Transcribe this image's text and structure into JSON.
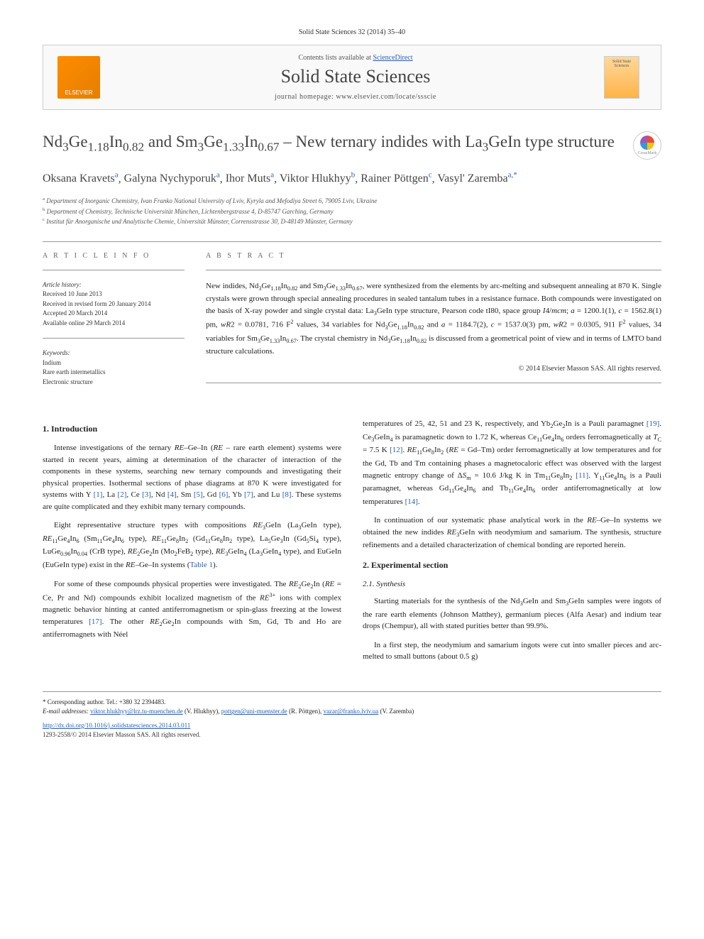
{
  "header": {
    "citation": "Solid State Sciences 32 (2014) 35–40"
  },
  "banner": {
    "contents_prefix": "Contents lists available at ",
    "contents_link": "ScienceDirect",
    "journal": "Solid State Sciences",
    "homepage_prefix": "journal homepage: ",
    "homepage": "www.elsevier.com/locate/ssscie",
    "publisher_name": "ELSEVIER",
    "cover_text": "Solid State Sciences"
  },
  "title": {
    "html": "Nd<sub>3</sub>Ge<sub>1.18</sub>In<sub>0.82</sub> and Sm<sub>3</sub>Ge<sub>1.33</sub>In<sub>0.67</sub> – New ternary indides with La<sub>3</sub>GeIn type structure"
  },
  "crossmark": "CrossMark",
  "authors": {
    "list": [
      {
        "name": "Oksana Kravets",
        "sup": "a"
      },
      {
        "name": "Galyna Nychyporuk",
        "sup": "a"
      },
      {
        "name": "Ihor Muts",
        "sup": "a"
      },
      {
        "name": "Viktor Hlukhyy",
        "sup": "b"
      },
      {
        "name": "Rainer Pöttgen",
        "sup": "c"
      },
      {
        "name": "Vasyl' Zaremba",
        "sup": "a,*"
      }
    ]
  },
  "affiliations": [
    {
      "sup": "a",
      "text": "Department of Inorganic Chemistry, Ivan Franko National University of Lviv, Kyryla and Mefodiya Street 6, 79005 Lviv, Ukraine"
    },
    {
      "sup": "b",
      "text": "Department of Chemistry, Technische Universität München, Lichtenbergstrasse 4, D-85747 Garching, Germany"
    },
    {
      "sup": "c",
      "text": "Institut für Anorganische und Analytische Chemie, Universität Münster, Corrensstrasse 30, D-48149 Münster, Germany"
    }
  ],
  "article_info": {
    "heading": "A R T I C L E   I N F O",
    "history_label": "Article history:",
    "history": [
      "Received 10 June 2013",
      "Received in revised form 20 January 2014",
      "Accepted 20 March 2014",
      "Available online 29 March 2014"
    ],
    "keywords_label": "Keywords:",
    "keywords": [
      "Indium",
      "Rare earth intermetallics",
      "Electronic structure"
    ]
  },
  "abstract": {
    "heading": "A B S T R A C T",
    "text_html": "New indides, Nd<sub>3</sub>Ge<sub>1.18</sub>In<sub>0.82</sub> and Sm<sub>3</sub>Ge<sub>1.33</sub>In<sub>0.67</sub>, were synthesized from the elements by arc-melting and subsequent annealing at 870 K. Single crystals were grown through special annealing procedures in sealed tantalum tubes in a resistance furnace. Both compounds were investigated on the basis of X-ray powder and single crystal data: La<sub>3</sub>GeIn type structure, Pearson code tI80, space group <i>I</i>4/<i>mcm</i>; <i>a</i> = 1200.1(1), <i>c</i> = 1562.8(1) pm, <i>wR</i>2 = 0.0781, 716 F<sup>2</sup> values, 34 variables for Nd<sub>3</sub>Ge<sub>1.18</sub>In<sub>0.82</sub> and <i>a</i> = 1184.7(2), <i>c</i> = 1537.0(3) pm, <i>wR</i>2 = 0.0305, 911 F<sup>2</sup> values, 34 variables for Sm<sub>3</sub>Ge<sub>1.33</sub>In<sub>0.67</sub>. The crystal chemistry in Nd<sub>3</sub>Ge<sub>1.18</sub>In<sub>0.82</sub> is discussed from a geometrical point of view and in terms of LMTO band structure calculations.",
    "copyright": "© 2014 Elsevier Masson SAS. All rights reserved."
  },
  "body": {
    "left": {
      "section1_heading": "1. Introduction",
      "p1_html": "Intense investigations of the ternary <i>RE</i>–Ge–In (<i>RE</i> – rare earth element) systems were started in recent years, aiming at determination of the character of interaction of the components in these systems, searching new ternary compounds and investigating their physical properties. Isothermal sections of phase diagrams at 870 K were investigated for systems with Y <span class='ref'>[1]</span>, La <span class='ref'>[2]</span>, Ce <span class='ref'>[3]</span>, Nd <span class='ref'>[4]</span>, Sm <span class='ref'>[5]</span>, Gd <span class='ref'>[6]</span>, Yb <span class='ref'>[7]</span>, and Lu <span class='ref'>[8]</span>. These systems are quite complicated and they exhibit many ternary compounds.",
      "p2_html": "Eight representative structure types with compositions <i>RE</i><sub>3</sub>GeIn (La<sub>3</sub>GeIn type), <i>RE</i><sub>11</sub>Ge<sub>4</sub>In<sub>6</sub> (Sm<sub>11</sub>Ge<sub>4</sub>In<sub>6</sub> type), <i>RE</i><sub>11</sub>Ge<sub>8</sub>In<sub>2</sub> (Gd<sub>11</sub>Ge<sub>8</sub>In<sub>2</sub> type), La<sub>5</sub>Ge<sub>3</sub>In (Gd<sub>5</sub>Si<sub>4</sub> type), LuGe<sub>0.96</sub>In<sub>0.04</sub> (CrB type), <i>RE</i><sub>2</sub>Ge<sub>2</sub>In (Mo<sub>2</sub>FeB<sub>2</sub> type), <i>RE</i><sub>3</sub>GeIn<sub>4</sub> (La<sub>3</sub>GeIn<sub>4</sub> type), and EuGeIn (EuGeIn type) exist in the <i>RE</i>–Ge–In systems (<span class='ref'>Table 1</span>).",
      "p3_html": "For some of these compounds physical properties were investigated. The <i>RE</i><sub>2</sub>Ge<sub>2</sub>In (<i>RE</i> = Ce, Pr and Nd) compounds exhibit localized magnetism of the <i>RE</i><sup>3+</sup> ions with complex magnetic behavior hinting at canted antiferromagnetism or spin-glass freezing at the lowest temperatures <span class='ref'>[17]</span>. The other <i>RE</i><sub>2</sub>Ge<sub>2</sub>In compounds with Sm, Gd, Tb and Ho are antiferromagnets with Néel"
    },
    "right": {
      "p1_html": "temperatures of 25, 42, 51 and 23 K, respectively, and Yb<sub>2</sub>Ge<sub>2</sub>In is a Pauli paramagnet <span class='ref'>[19]</span>. Ce<sub>3</sub>GeIn<sub>4</sub> is paramagnetic down to 1.72 K, whereas Ce<sub>11</sub>Ge<sub>4</sub>In<sub>6</sub> orders ferromagnetically at <i>T</i><sub>C</sub> = 7.5 K <span class='ref'>[12]</span>. <i>RE</i><sub>11</sub>Ge<sub>8</sub>In<sub>2</sub> (<i>RE</i> = Gd–Tm) order ferromagnetically at low temperatures and for the Gd, Tb and Tm containing phases a magnetocaloric effect was observed with the largest magnetic entropy change of Δ<i>S</i><sub>m</sub> = 10.6 J/kg K in Tm<sub>11</sub>Ge<sub>8</sub>In<sub>2</sub> <span class='ref'>[11]</span>. Y<sub>11</sub>Ge<sub>4</sub>In<sub>6</sub> is a Pauli paramagnet, whereas Gd<sub>11</sub>Ge<sub>4</sub>In<sub>6</sub> and Tb<sub>11</sub>Ge<sub>4</sub>In<sub>6</sub> order antiferromagnetically at low temperatures <span class='ref'>[14]</span>.",
      "p2_html": "In continuation of our systematic phase analytical work in the <i>RE</i>–Ge–In systems we obtained the new indides <i>RE</i><sub>3</sub>GeIn with neodymium and samarium. The synthesis, structure refinements and a detailed characterization of chemical bonding are reported herein.",
      "section2_heading": "2. Experimental section",
      "sub21_heading": "2.1. Synthesis",
      "p3_html": "Starting materials for the synthesis of the Nd<sub>3</sub>GeIn and Sm<sub>3</sub>GeIn samples were ingots of the rare earth elements (Johnson Matthey), germanium pieces (Alfa Aesar) and indium tear drops (Chempur), all with stated purities better than 99.9%.",
      "p4_html": "In a first step, the neodymium and samarium ingots were cut into smaller pieces and arc-melted to small buttons (about 0.5 g)"
    }
  },
  "footer": {
    "corresponding": "* Corresponding author. Tel.: +380 32 2394483.",
    "email_label": "E-mail addresses:",
    "emails": [
      {
        "addr": "viktor.hlukhyy@lrz.tu-muenchen.de",
        "who": "(V. Hlukhyy)"
      },
      {
        "addr": "pottgen@uni-muenster.de",
        "who": "(R. Pöttgen)"
      },
      {
        "addr": "vazar@franko.lviv.ua",
        "who": "(V. Zaremba)"
      }
    ],
    "doi": "http://dx.doi.org/10.1016/j.solidstatesciences.2014.03.011",
    "issn_copyright": "1293-2558/© 2014 Elsevier Masson SAS. All rights reserved."
  }
}
